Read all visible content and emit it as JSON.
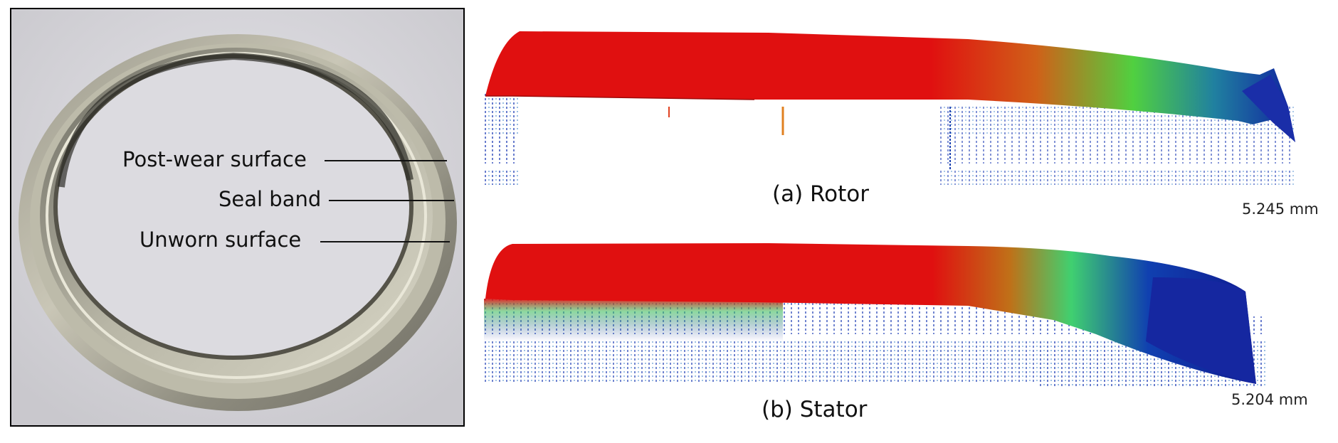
{
  "photo": {
    "labels": {
      "post_wear": "Post-wear surface",
      "seal_band": "Seal band",
      "unworn": "Unworn surface"
    }
  },
  "profiles": {
    "rotor": {
      "caption": "(a) Rotor",
      "scale": "5.245 mm"
    },
    "stator": {
      "caption": "(b) Stator",
      "scale": "5.204 mm"
    }
  },
  "colors": {
    "high": "#e01010",
    "mid": "#40d040",
    "low": "#1020a0"
  }
}
